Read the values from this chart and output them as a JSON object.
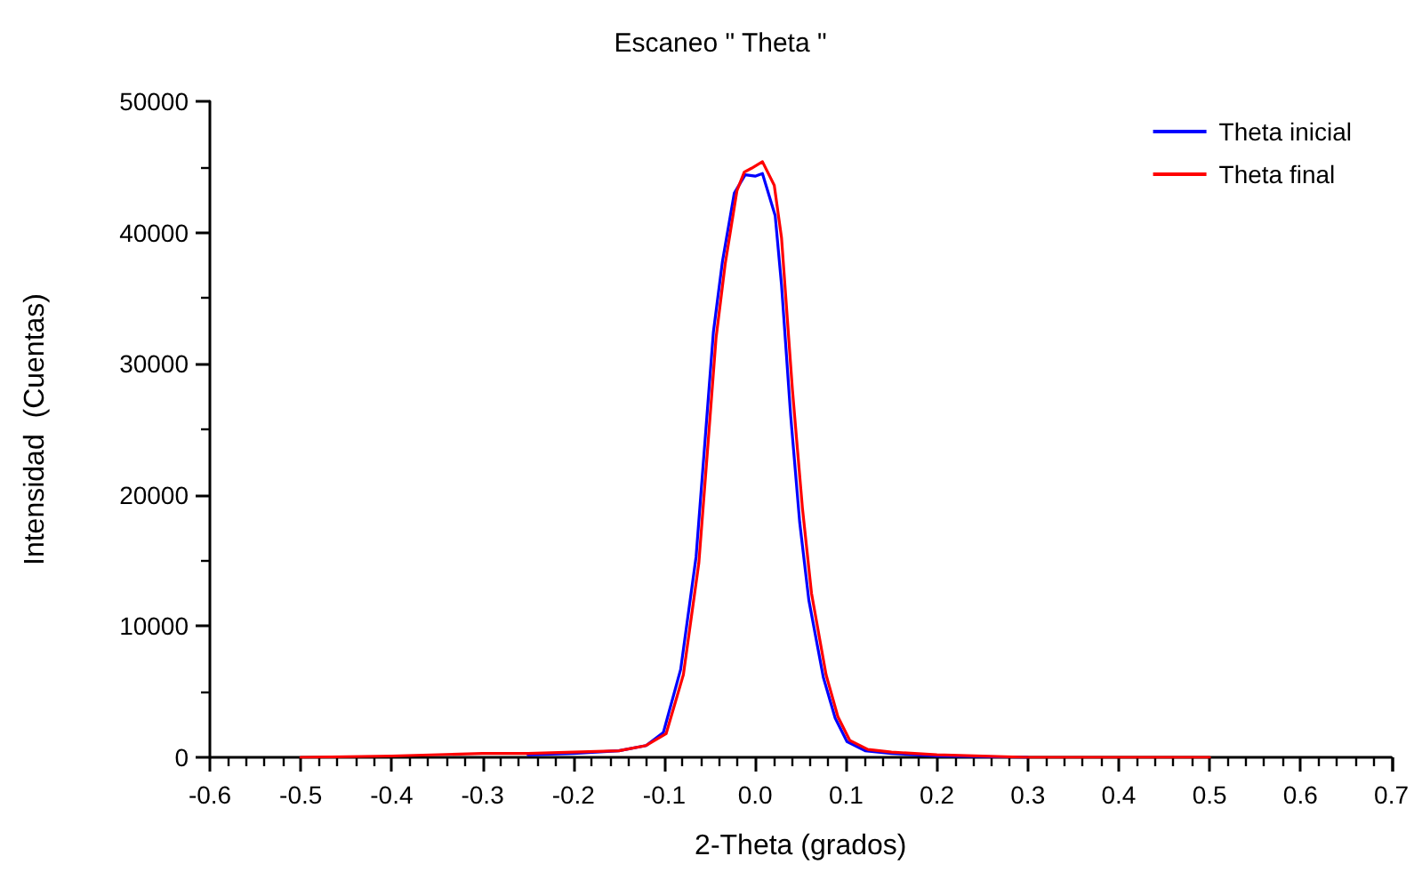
{
  "chart_data": {
    "type": "line",
    "title": "Escaneo \" Theta \"",
    "xlabel": "2-Theta (grados)",
    "ylabel": "Intensidad  (Cuentas)",
    "xlim": [
      -0.6,
      0.7
    ],
    "xticks": [
      -0.6,
      -0.5,
      -0.4,
      -0.3,
      -0.2,
      -0.1,
      {
        "value": 0,
        "label": "0.0"
      },
      0.1,
      0.2,
      0.3,
      0.4,
      0.5,
      0.6,
      0.7
    ],
    "ylim": [
      0,
      50000
    ],
    "yticks": [
      0,
      10000,
      20000,
      30000,
      40000,
      50000
    ],
    "grid": false,
    "legend": "top right",
    "marker": "none",
    "line_style": "solid",
    "series": [
      {
        "name": "Theta inicial",
        "color": "#0000ff",
        "x": [
          -0.25,
          -0.2,
          -0.15,
          -0.12,
          -0.101,
          -0.082,
          -0.065,
          -0.055,
          -0.046,
          -0.036,
          -0.023,
          -0.011,
          0,
          0.008,
          0.022,
          0.029,
          0.039,
          0.049,
          0.059,
          0.075,
          0.088,
          0.101,
          0.121,
          0.15,
          0.2,
          0.3
        ],
        "values": [
          200,
          300,
          500,
          900,
          1900,
          6700,
          15300,
          24300,
          32400,
          37800,
          43000,
          44400,
          44300,
          44500,
          41300,
          36000,
          26100,
          17900,
          12000,
          6100,
          3000,
          1200,
          500,
          300,
          100,
          0
        ]
      },
      {
        "name": "Theta final",
        "color": "#ff0000",
        "x": [
          -0.5,
          -0.4,
          -0.3,
          -0.25,
          -0.2,
          -0.15,
          -0.12,
          -0.098,
          -0.079,
          -0.062,
          -0.052,
          -0.043,
          -0.033,
          -0.02,
          -0.012,
          -0.004,
          0.008,
          0.021,
          0.029,
          0.041,
          0.052,
          0.062,
          0.078,
          0.091,
          0.104,
          0.124,
          0.15,
          0.2,
          0.3,
          0.4,
          0.5
        ],
        "values": [
          0,
          100,
          300,
          300,
          400,
          500,
          900,
          1800,
          6300,
          14800,
          23800,
          32000,
          37600,
          43200,
          44600,
          44900,
          45400,
          43600,
          39600,
          28000,
          19000,
          12500,
          6300,
          3100,
          1300,
          600,
          400,
          200,
          0,
          0,
          0
        ]
      }
    ]
  }
}
